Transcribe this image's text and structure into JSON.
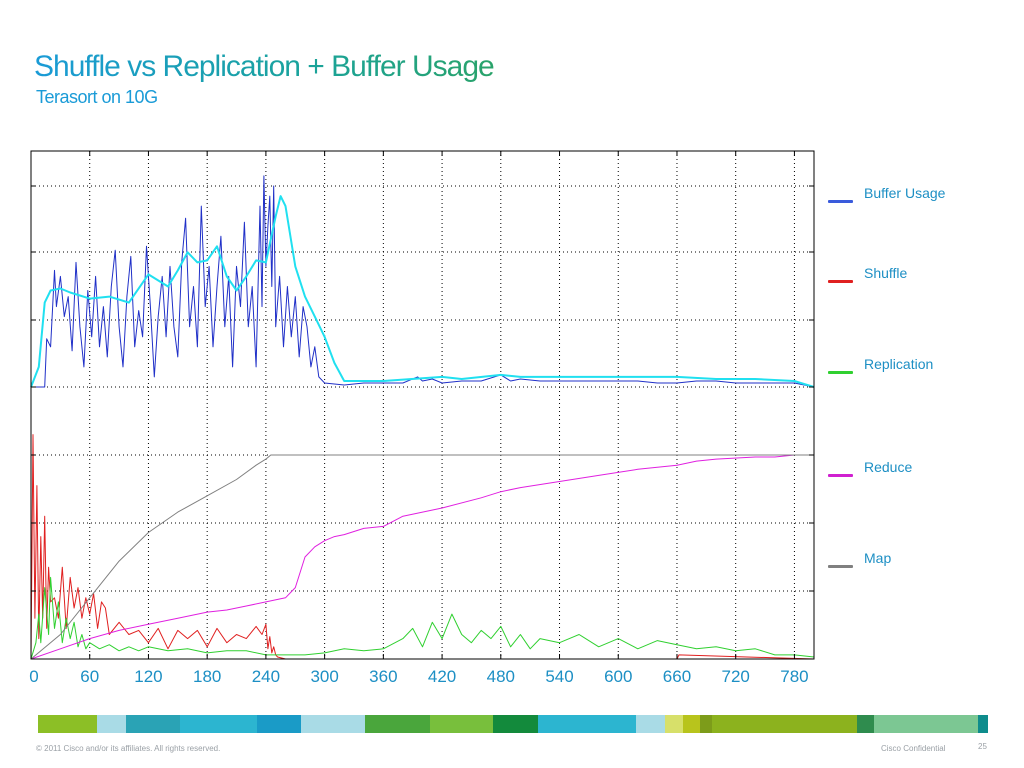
{
  "slide": {
    "title": "Shuffle vs Replication + Buffer Usage",
    "subtitle": "Terasort on 10G",
    "footer_left": "© 2011 Cisco and/or its affiliates. All rights reserved.",
    "footer_right": "Cisco Confidential",
    "page_number": "25"
  },
  "legend": [
    {
      "label": "Buffer Usage",
      "color": "#3a5bdc"
    },
    {
      "label": "Shuffle",
      "color": "#e02020"
    },
    {
      "label": "Replication",
      "color": "#30d030"
    },
    {
      "label": "Reduce",
      "color": "#d020d0"
    },
    {
      "label": "Map",
      "color": "#808080"
    }
  ],
  "stripe_colors": [
    "#8cbf26",
    "#a9dbe6",
    "#2aa3b5",
    "#2cb5d0",
    "#1a9bc7",
    "#a9dbe6",
    "#4aa63c",
    "#78bf3c",
    "#138a3c",
    "#2cb5d0",
    "#a9dbe6",
    "#d7e06a",
    "#b8c41c",
    "#7d9c1a",
    "#8cb21e",
    "#2f8c4e",
    "#7cc793",
    "#0e8c8c"
  ],
  "chart_data": {
    "type": "line",
    "xlim": [
      0,
      800
    ],
    "x_ticks": [
      0,
      60,
      120,
      180,
      240,
      300,
      360,
      420,
      480,
      540,
      600,
      660,
      720,
      780
    ],
    "y_axis_scaling": "unlabeled",
    "grid": true,
    "legend_position": "right",
    "series": [
      {
        "name": "Buffer Usage",
        "color": "#2030c8",
        "panel": "upper",
        "x": [
          0,
          14,
          16,
          20,
          24,
          26,
          30,
          34,
          38,
          42,
          46,
          50,
          54,
          58,
          62,
          66,
          70,
          74,
          78,
          82,
          86,
          90,
          94,
          98,
          102,
          106,
          110,
          114,
          118,
          122,
          126,
          130,
          134,
          138,
          142,
          146,
          150,
          154,
          158,
          162,
          166,
          170,
          174,
          178,
          182,
          186,
          190,
          194,
          198,
          202,
          206,
          210,
          214,
          218,
          222,
          226,
          230,
          234,
          236,
          238,
          240,
          242,
          244,
          246,
          248,
          250,
          254,
          258,
          262,
          266,
          270,
          274,
          278,
          282,
          286,
          290,
          294,
          300,
          320,
          340,
          360,
          380,
          395,
          400,
          410,
          420,
          440,
          460,
          480,
          490,
          500,
          520,
          540,
          560,
          580,
          600,
          620,
          640,
          660,
          680,
          700,
          720,
          740,
          760,
          780,
          800
        ],
        "y": [
          0.0,
          0.0,
          0.24,
          0.2,
          0.58,
          0.4,
          0.55,
          0.35,
          0.45,
          0.18,
          0.62,
          0.3,
          0.1,
          0.48,
          0.25,
          0.55,
          0.2,
          0.4,
          0.15,
          0.5,
          0.68,
          0.3,
          0.1,
          0.45,
          0.65,
          0.2,
          0.38,
          0.25,
          0.7,
          0.4,
          0.05,
          0.35,
          0.55,
          0.25,
          0.6,
          0.3,
          0.15,
          0.62,
          0.84,
          0.3,
          0.5,
          0.2,
          0.9,
          0.4,
          0.6,
          0.2,
          0.5,
          0.75,
          0.3,
          0.55,
          0.1,
          0.6,
          0.4,
          0.82,
          0.3,
          0.5,
          0.1,
          0.9,
          0.4,
          1.05,
          0.6,
          0.8,
          0.95,
          0.5,
          1.0,
          0.3,
          0.55,
          0.2,
          0.5,
          0.25,
          0.45,
          0.15,
          0.4,
          0.3,
          0.1,
          0.2,
          0.05,
          0.02,
          0.01,
          0.02,
          0.02,
          0.02,
          0.05,
          0.03,
          0.04,
          0.02,
          0.03,
          0.03,
          0.06,
          0.03,
          0.04,
          0.03,
          0.03,
          0.03,
          0.03,
          0.03,
          0.03,
          0.02,
          0.02,
          0.03,
          0.03,
          0.02,
          0.02,
          0.02,
          0.02,
          0.0
        ]
      },
      {
        "name": "",
        "color": "#20e0f0",
        "panel": "upper",
        "x": [
          0,
          8,
          14,
          20,
          30,
          40,
          60,
          80,
          100,
          120,
          140,
          150,
          160,
          170,
          180,
          190,
          200,
          210,
          220,
          230,
          240,
          250,
          255,
          260,
          270,
          280,
          290,
          300,
          310,
          320,
          360,
          420,
          440,
          480,
          500,
          540,
          600,
          660,
          700,
          740,
          780,
          800
        ],
        "y": [
          0.0,
          0.1,
          0.42,
          0.48,
          0.49,
          0.47,
          0.44,
          0.45,
          0.42,
          0.56,
          0.5,
          0.58,
          0.67,
          0.62,
          0.63,
          0.7,
          0.55,
          0.48,
          0.55,
          0.63,
          0.62,
          0.85,
          0.95,
          0.9,
          0.6,
          0.45,
          0.35,
          0.25,
          0.12,
          0.03,
          0.03,
          0.05,
          0.04,
          0.06,
          0.05,
          0.05,
          0.05,
          0.05,
          0.04,
          0.04,
          0.03,
          0.0
        ]
      },
      {
        "name": "Shuffle",
        "color": "#e02020",
        "panel": "lower",
        "x": [
          0,
          2,
          4,
          6,
          8,
          10,
          12,
          14,
          16,
          18,
          20,
          24,
          28,
          32,
          36,
          40,
          44,
          48,
          52,
          56,
          60,
          64,
          68,
          72,
          76,
          80,
          90,
          100,
          110,
          120,
          130,
          140,
          150,
          160,
          170,
          180,
          190,
          200,
          210,
          220,
          230,
          236,
          240,
          242,
          244,
          246,
          248,
          250,
          252,
          260,
          300,
          400,
          500,
          600,
          660,
          662,
          800
        ],
        "y": [
          0.0,
          1.1,
          0.2,
          0.85,
          0.1,
          0.6,
          0.2,
          0.7,
          0.15,
          0.45,
          0.28,
          0.3,
          0.2,
          0.45,
          0.15,
          0.4,
          0.25,
          0.35,
          0.2,
          0.3,
          0.22,
          0.32,
          0.15,
          0.28,
          0.25,
          0.12,
          0.18,
          0.12,
          0.14,
          0.08,
          0.15,
          0.05,
          0.14,
          0.1,
          0.14,
          0.06,
          0.15,
          0.08,
          0.12,
          0.1,
          0.16,
          0.12,
          0.17,
          0.05,
          0.11,
          0.03,
          0.06,
          0.02,
          0.01,
          0.0,
          0.0,
          0.0,
          0.0,
          0.0,
          0.0,
          0.02,
          0.0
        ]
      },
      {
        "name": "Replication",
        "color": "#30d030",
        "panel": "lower",
        "x": [
          0,
          5,
          8,
          10,
          14,
          18,
          20,
          24,
          28,
          32,
          36,
          40,
          44,
          48,
          52,
          56,
          60,
          70,
          80,
          90,
          100,
          110,
          120,
          140,
          160,
          180,
          200,
          220,
          240,
          260,
          280,
          300,
          320,
          340,
          360,
          380,
          390,
          400,
          410,
          420,
          430,
          440,
          450,
          460,
          470,
          480,
          490,
          500,
          510,
          520,
          540,
          560,
          580,
          600,
          620,
          640,
          660,
          680,
          700,
          720,
          740,
          760,
          780,
          800
        ],
        "y": [
          0.0,
          0.08,
          0.22,
          0.08,
          0.35,
          0.12,
          0.4,
          0.15,
          0.28,
          0.08,
          0.2,
          0.1,
          0.18,
          0.06,
          0.12,
          0.05,
          0.08,
          0.05,
          0.07,
          0.04,
          0.06,
          0.04,
          0.06,
          0.04,
          0.05,
          0.03,
          0.04,
          0.04,
          0.02,
          0.02,
          0.02,
          0.03,
          0.05,
          0.04,
          0.05,
          0.1,
          0.15,
          0.06,
          0.18,
          0.1,
          0.22,
          0.12,
          0.08,
          0.14,
          0.1,
          0.16,
          0.06,
          0.12,
          0.05,
          0.1,
          0.08,
          0.12,
          0.06,
          0.1,
          0.05,
          0.09,
          0.07,
          0.05,
          0.06,
          0.04,
          0.05,
          0.02,
          0.02,
          0.01
        ]
      },
      {
        "name": "Reduce",
        "color": "#e020e0",
        "panel": "lower",
        "x": [
          0,
          30,
          60,
          90,
          120,
          150,
          180,
          200,
          220,
          240,
          260,
          270,
          280,
          290,
          300,
          310,
          320,
          340,
          360,
          380,
          420,
          460,
          480,
          500,
          540,
          580,
          620,
          660,
          680,
          700,
          740,
          760,
          780,
          800
        ],
        "y": [
          0.0,
          0.05,
          0.1,
          0.14,
          0.17,
          0.2,
          0.23,
          0.24,
          0.26,
          0.28,
          0.3,
          0.35,
          0.5,
          0.55,
          0.58,
          0.6,
          0.61,
          0.64,
          0.65,
          0.7,
          0.74,
          0.79,
          0.82,
          0.84,
          0.87,
          0.9,
          0.93,
          0.95,
          0.97,
          0.98,
          0.99,
          0.99,
          1.0,
          1.0
        ],
        "note": ""
      },
      {
        "name": "Map",
        "color": "#808080",
        "panel": "lower",
        "x": [
          0,
          30,
          60,
          90,
          120,
          150,
          180,
          210,
          230,
          240,
          245,
          250,
          260,
          300,
          400,
          500,
          600,
          700,
          800
        ],
        "y": [
          0.0,
          0.12,
          0.3,
          0.48,
          0.62,
          0.72,
          0.8,
          0.88,
          0.95,
          0.98,
          1.0,
          1.0,
          1.0,
          1.0,
          1.0,
          1.0,
          1.0,
          1.0,
          1.0
        ]
      }
    ]
  }
}
